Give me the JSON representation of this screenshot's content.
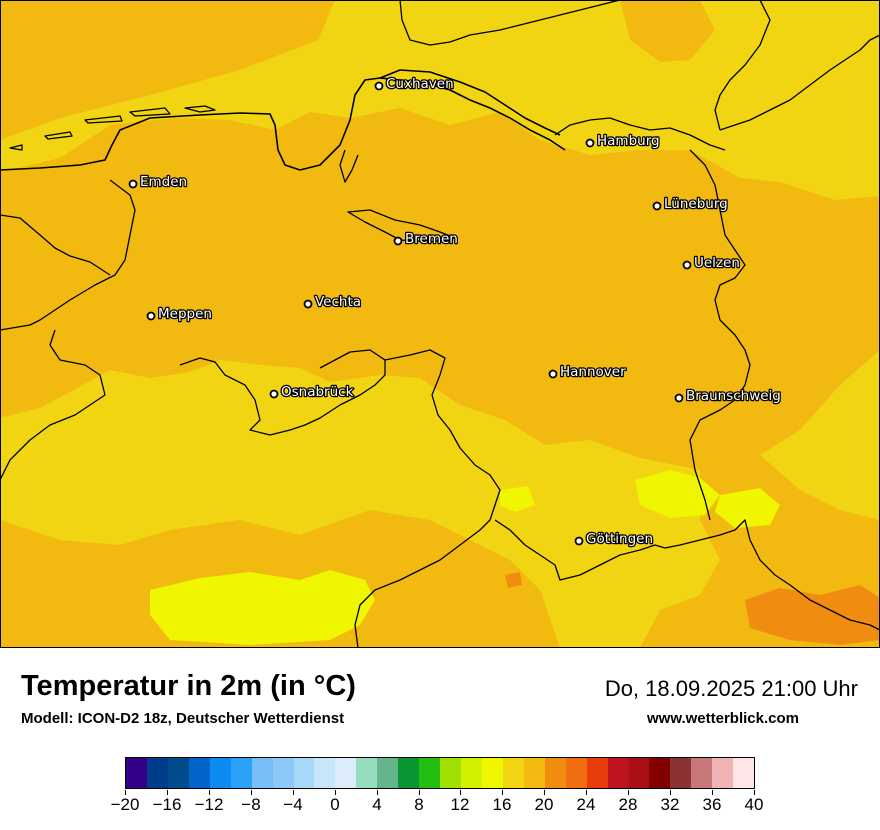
{
  "map": {
    "title": "Temperatur in 2m (in °C)",
    "model_line": "Modell: ICON-D2 18z, Deutscher Wetterdienst",
    "valid_time": "Do, 18.09.2025 21:00 Uhr",
    "website": "www.wetterblick.com",
    "cities": [
      {
        "id": "cuxhaven",
        "label": "Cuxhaven"
      },
      {
        "id": "hamburg",
        "label": "Hamburg"
      },
      {
        "id": "emden",
        "label": "Emden"
      },
      {
        "id": "lueneburg",
        "label": "Lüneburg"
      },
      {
        "id": "bremen",
        "label": "Bremen"
      },
      {
        "id": "uelzen",
        "label": "Uelzen"
      },
      {
        "id": "vechta",
        "label": "Vechta"
      },
      {
        "id": "meppen",
        "label": "Meppen"
      },
      {
        "id": "hannover",
        "label": "Hannover"
      },
      {
        "id": "osnabrueck",
        "label": "Osnabrück"
      },
      {
        "id": "braunschweig",
        "label": "Braunschweig"
      },
      {
        "id": "goettingen",
        "label": "Göttingen"
      }
    ],
    "field_colors": {
      "temp_18_20": "#f2d512",
      "temp_20_22": "#f2b910",
      "temp_16_18": "#f0f500",
      "temp_22_24": "#f08c10",
      "boundary": "#000000"
    }
  },
  "legend": {
    "unit": "°C",
    "colors": [
      "#330088",
      "#003c8c",
      "#004b8c",
      "#0064c8",
      "#0a8cf0",
      "#2aa0f8",
      "#78bef8",
      "#8cc8f8",
      "#a8d8f8",
      "#c8e6fa",
      "#dcecfa",
      "#96dcbe",
      "#64b48c",
      "#0a9632",
      "#23be14",
      "#a0e000",
      "#d2f000",
      "#f0f500",
      "#f2d512",
      "#f2b910",
      "#f08c10",
      "#f06e10",
      "#e83c0a",
      "#be141e",
      "#aa0f14",
      "#820000",
      "#8c3232",
      "#c87878",
      "#f0b4b4",
      "#ffe6e6"
    ],
    "tick_labels": [
      "−20",
      "−16",
      "−12",
      "−8",
      "−4",
      "0",
      "4",
      "8",
      "12",
      "16",
      "20",
      "24",
      "28",
      "32",
      "36",
      "40"
    ]
  }
}
